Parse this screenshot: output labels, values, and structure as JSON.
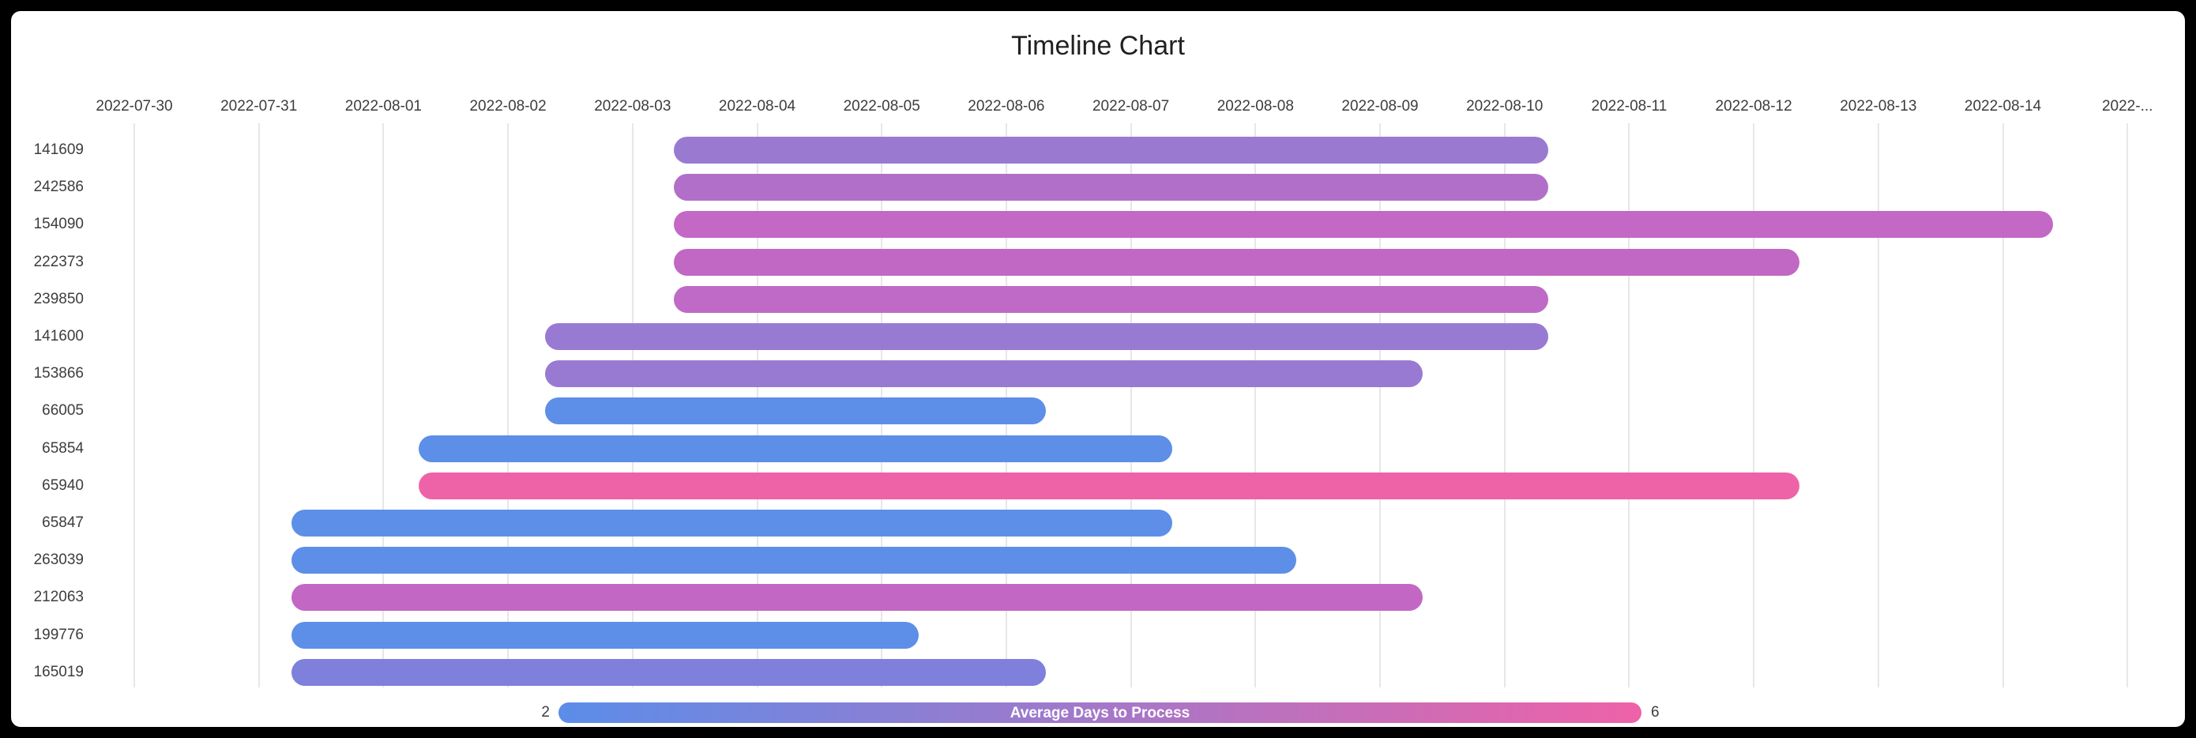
{
  "chart_data": {
    "type": "timeline",
    "title": "Timeline Chart",
    "x_axis": {
      "grid": true,
      "start_date": "2022-07-30",
      "end_date": "2022-08-15",
      "tick_labels": [
        "2022-07-30",
        "2022-07-31",
        "2022-08-01",
        "2022-08-02",
        "2022-08-03",
        "2022-08-04",
        "2022-08-05",
        "2022-08-06",
        "2022-08-07",
        "2022-08-08",
        "2022-08-09",
        "2022-08-10",
        "2022-08-11",
        "2022-08-12",
        "2022-08-13",
        "2022-08-14",
        "2022-..."
      ]
    },
    "y_axis": {
      "tick_labels": [
        "141609",
        "242586",
        "154090",
        "222373",
        "239850",
        "141600",
        "153866",
        "66005",
        "65854",
        "65940",
        "65847",
        "263039",
        "212063",
        "199776",
        "165019"
      ]
    },
    "tasks": [
      {
        "label": "141609",
        "start_day": 4.33,
        "end_day": 11.35,
        "start_date": "2022-08-03",
        "end_date": "2022-08-10",
        "duration_days": 7,
        "color": "#9a7ad1",
        "avg_days_to_process": 4
      },
      {
        "label": "242586",
        "start_day": 4.33,
        "end_day": 11.35,
        "start_date": "2022-08-03",
        "end_date": "2022-08-10",
        "duration_days": 7,
        "color": "#b26fc9",
        "avg_days_to_process": 4.5
      },
      {
        "label": "154090",
        "start_day": 4.33,
        "end_day": 15.4,
        "start_date": "2022-08-03",
        "end_date": "2022-08-14",
        "duration_days": 11,
        "color": "#c468c5",
        "avg_days_to_process": 5
      },
      {
        "label": "222373",
        "start_day": 4.33,
        "end_day": 13.37,
        "start_date": "2022-08-03",
        "end_date": "2022-08-12",
        "duration_days": 9,
        "color": "#c167c4",
        "avg_days_to_process": 5
      },
      {
        "label": "239850",
        "start_day": 4.33,
        "end_day": 11.35,
        "start_date": "2022-08-03",
        "end_date": "2022-08-10",
        "duration_days": 7,
        "color": "#be6ac6",
        "avg_days_to_process": 5
      },
      {
        "label": "141600",
        "start_day": 3.3,
        "end_day": 11.35,
        "start_date": "2022-08-02",
        "end_date": "2022-08-10",
        "duration_days": 8,
        "color": "#997ad2",
        "avg_days_to_process": 4
      },
      {
        "label": "153866",
        "start_day": 3.3,
        "end_day": 10.34,
        "start_date": "2022-08-02",
        "end_date": "2022-08-09",
        "duration_days": 7,
        "color": "#997ad2",
        "avg_days_to_process": 4
      },
      {
        "label": "66005",
        "start_day": 3.3,
        "end_day": 7.32,
        "start_date": "2022-08-02",
        "end_date": "2022-08-06",
        "duration_days": 4,
        "color": "#5d8fe8",
        "avg_days_to_process": 2
      },
      {
        "label": "65854",
        "start_day": 2.28,
        "end_day": 8.33,
        "start_date": "2022-08-01",
        "end_date": "2022-08-07",
        "duration_days": 6,
        "color": "#5d8fe8",
        "avg_days_to_process": 2
      },
      {
        "label": "65940",
        "start_day": 2.28,
        "end_day": 13.37,
        "start_date": "2022-08-01",
        "end_date": "2022-08-12",
        "duration_days": 11,
        "color": "#ee63a7",
        "avg_days_to_process": 6
      },
      {
        "label": "65847",
        "start_day": 1.26,
        "end_day": 8.33,
        "start_date": "2022-07-31",
        "end_date": "2022-08-07",
        "duration_days": 7,
        "color": "#5d8fe8",
        "avg_days_to_process": 2
      },
      {
        "label": "263039",
        "start_day": 1.26,
        "end_day": 9.33,
        "start_date": "2022-07-31",
        "end_date": "2022-08-08",
        "duration_days": 8,
        "color": "#5d8fe8",
        "avg_days_to_process": 2
      },
      {
        "label": "212063",
        "start_day": 1.26,
        "end_day": 10.34,
        "start_date": "2022-07-31",
        "end_date": "2022-08-09",
        "duration_days": 9,
        "color": "#c267c3",
        "avg_days_to_process": 5
      },
      {
        "label": "199776",
        "start_day": 1.26,
        "end_day": 6.3,
        "start_date": "2022-07-31",
        "end_date": "2022-08-05",
        "duration_days": 5,
        "color": "#5d8fe8",
        "avg_days_to_process": 2
      },
      {
        "label": "165019",
        "start_day": 1.26,
        "end_day": 7.32,
        "start_date": "2022-07-31",
        "end_date": "2022-08-06",
        "duration_days": 6,
        "color": "#7e80dc",
        "avg_days_to_process": 3
      }
    ],
    "colorbar": {
      "label": "Average Days to Process",
      "min": 2,
      "max": 6,
      "min_color": "#5b8de9",
      "max_color": "#ee62a8",
      "position": "bottom"
    },
    "colors": {
      "page_background": "#000000",
      "chart_background": "#ffffff",
      "gridline": "#e7e7e7",
      "tick_text": "#3d3d3d",
      "title_text": "#212121"
    }
  }
}
